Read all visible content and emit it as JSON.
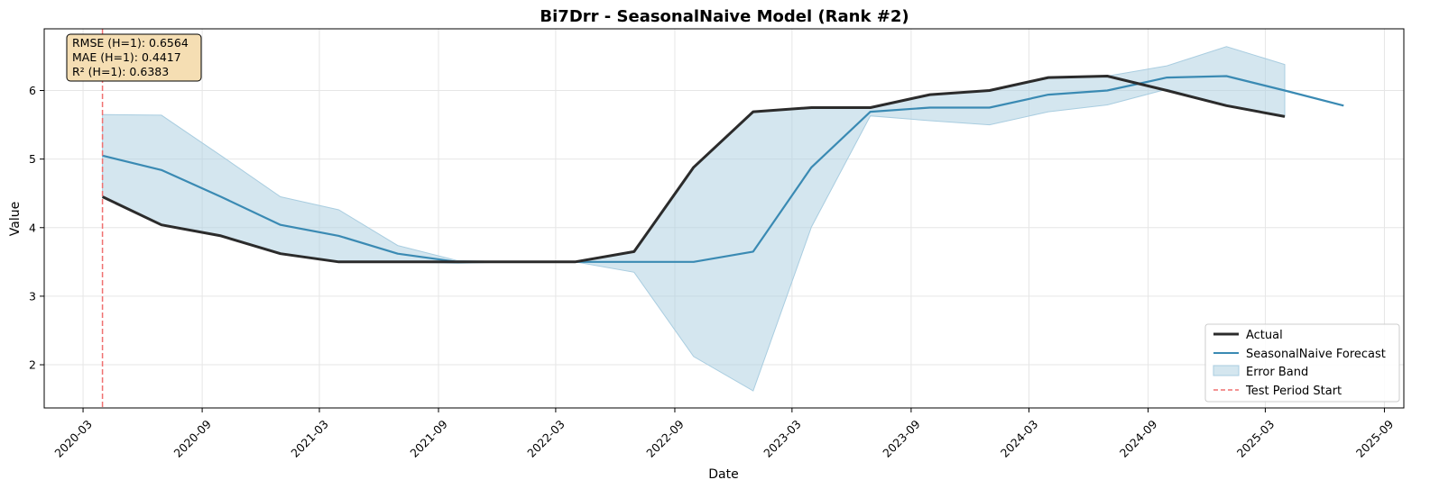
{
  "chart_data": {
    "type": "line",
    "title": "Bi7Drr - SeasonalNaive Model (Rank #2)",
    "xlabel": "Date",
    "ylabel": "Value",
    "x_tick_labels": [
      "2020-03",
      "2020-09",
      "2021-03",
      "2021-09",
      "2022-03",
      "2022-09",
      "2023-03",
      "2023-09",
      "2024-03",
      "2024-09",
      "2025-03",
      "2025-09"
    ],
    "x_tick_dates": [
      "2020-03-01",
      "2020-09-01",
      "2021-03-01",
      "2021-09-01",
      "2022-03-01",
      "2022-09-01",
      "2023-03-01",
      "2023-09-01",
      "2024-03-01",
      "2024-09-01",
      "2025-03-01",
      "2025-09-01"
    ],
    "y_ticks": [
      2,
      3,
      4,
      5,
      6
    ],
    "ylim": [
      1.37,
      6.9
    ],
    "xlim": [
      "2020-01-01",
      "2025-10-01"
    ],
    "grid": true,
    "legend_position": "lower-right",
    "metrics": [
      "RMSE (H=1): 0.6564",
      "MAE (H=1): 0.4417",
      "R² (H=1): 0.6383"
    ],
    "test_period_start": "2020-03-31",
    "series": [
      {
        "name": "Actual",
        "color": "#2b2b2b",
        "x": [
          "2020-03-31",
          "2020-06-30",
          "2020-09-30",
          "2020-12-31",
          "2021-03-31",
          "2021-06-30",
          "2021-09-30",
          "2021-12-31",
          "2022-03-31",
          "2022-06-30",
          "2022-09-30",
          "2022-12-31",
          "2023-03-31",
          "2023-06-30",
          "2023-09-30",
          "2023-12-31",
          "2024-03-31",
          "2024-06-30",
          "2024-09-30",
          "2024-12-31",
          "2025-03-31"
        ],
        "values": [
          4.45,
          4.04,
          3.88,
          3.62,
          3.5,
          3.5,
          3.5,
          3.5,
          3.5,
          3.65,
          4.88,
          5.69,
          5.75,
          5.75,
          5.94,
          6.0,
          6.19,
          6.21,
          6.0,
          5.78,
          5.62
        ]
      },
      {
        "name": "SeasonalNaive Forecast",
        "color": "#3a8ab3",
        "x": [
          "2020-03-31",
          "2020-06-30",
          "2020-09-30",
          "2020-12-31",
          "2021-03-31",
          "2021-06-30",
          "2021-09-30",
          "2021-12-31",
          "2022-03-31",
          "2022-06-30",
          "2022-09-30",
          "2022-12-31",
          "2023-03-31",
          "2023-06-30",
          "2023-09-30",
          "2023-12-31",
          "2024-03-31",
          "2024-06-30",
          "2024-09-30",
          "2024-12-31",
          "2025-03-31",
          "2025-06-30"
        ],
        "values": [
          5.05,
          4.84,
          4.45,
          4.04,
          3.88,
          3.62,
          3.5,
          3.5,
          3.5,
          3.5,
          3.5,
          3.65,
          4.88,
          5.69,
          5.75,
          5.75,
          5.94,
          6.0,
          6.19,
          6.21,
          6.0,
          5.78
        ]
      }
    ],
    "error_band": {
      "name": "Error Band",
      "color": "#a9cde0",
      "x": [
        "2020-03-31",
        "2020-06-30",
        "2020-09-30",
        "2020-12-31",
        "2021-03-31",
        "2021-06-30",
        "2021-09-30",
        "2021-12-31",
        "2022-03-31",
        "2022-06-30",
        "2022-09-30",
        "2022-12-31",
        "2023-03-31",
        "2023-06-30",
        "2023-09-30",
        "2023-12-31",
        "2024-03-31",
        "2024-06-30",
        "2024-09-30",
        "2024-12-31",
        "2025-03-31"
      ],
      "upper": [
        5.65,
        5.64,
        5.05,
        4.45,
        4.26,
        3.74,
        3.52,
        3.5,
        3.5,
        3.65,
        4.88,
        5.69,
        5.75,
        5.75,
        5.94,
        6.0,
        6.19,
        6.21,
        6.36,
        6.64,
        6.38
      ],
      "lower": [
        4.45,
        4.04,
        3.88,
        3.62,
        3.5,
        3.5,
        3.48,
        3.5,
        3.5,
        3.35,
        2.12,
        1.62,
        4.01,
        5.63,
        5.56,
        5.5,
        5.69,
        5.79,
        6.02,
        5.78,
        5.62
      ]
    },
    "test_line_label": "Test Period Start"
  }
}
